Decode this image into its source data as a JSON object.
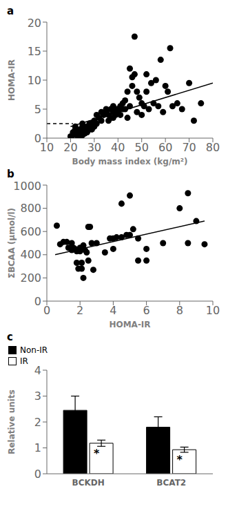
{
  "chart_data": [
    {
      "type": "scatter",
      "title": "a",
      "x_label": "Body mass index (kg/m²)",
      "y_label": "HOMA-IR",
      "xlim": [
        10,
        80
      ],
      "ylim": [
        0,
        20
      ],
      "xticks": [
        10,
        20,
        30,
        40,
        50,
        60,
        70,
        80
      ],
      "yticks": [
        0,
        5,
        10,
        15,
        20
      ],
      "series": [
        {
          "type": "scatter",
          "color": "#000000",
          "marker": "circle",
          "x": [
            20,
            21,
            21,
            22,
            22,
            22,
            22,
            23,
            23,
            23,
            23,
            24,
            24,
            24,
            24,
            24,
            25,
            25,
            25,
            25,
            25,
            25,
            26,
            26,
            26,
            27,
            27,
            27,
            28,
            28,
            28,
            29,
            29,
            30,
            30,
            31,
            31,
            32,
            33,
            33,
            34,
            35,
            35,
            36,
            36,
            37,
            37,
            38,
            38,
            38,
            39,
            39,
            40,
            40,
            41,
            41,
            42,
            42,
            43,
            43,
            44,
            44,
            45,
            45,
            46,
            46,
            47,
            47,
            48,
            48,
            49,
            50,
            50,
            51,
            52,
            52,
            53,
            54,
            55,
            56,
            57,
            58,
            59,
            60,
            61,
            62,
            63,
            65,
            67,
            70,
            72,
            75
          ],
          "values": [
            0.3,
            0.5,
            1.0,
            0.8,
            1.2,
            1.5,
            2.0,
            0.3,
            0.5,
            0.8,
            1.0,
            0.3,
            0.5,
            0.8,
            1.2,
            1.5,
            0.5,
            0.8,
            1.0,
            1.5,
            2.0,
            2.5,
            0.8,
            1.2,
            1.8,
            1.0,
            1.5,
            2.0,
            1.5,
            2.0,
            2.5,
            1.5,
            2.5,
            2.0,
            3.0,
            2.5,
            4.0,
            3.5,
            3.0,
            4.5,
            4.0,
            4.5,
            5.0,
            3.0,
            4.0,
            3.5,
            5.0,
            4.5,
            3.5,
            5.5,
            4.0,
            5.0,
            4.5,
            5.0,
            4.0,
            5.5,
            5.0,
            6.0,
            5.0,
            6.5,
            3.5,
            8.0,
            5.5,
            12.0,
            9.0,
            10.5,
            11.0,
            17.5,
            8.0,
            4.5,
            7.0,
            4.0,
            6.0,
            5.5,
            8.0,
            11.0,
            5.0,
            9.5,
            6.0,
            10.0,
            5.5,
            13.5,
            4.5,
            9.0,
            8.0,
            15.5,
            5.5,
            6.0,
            5.0,
            9.5,
            3.0,
            6.0
          ]
        },
        {
          "type": "line",
          "color": "#000000",
          "line_style": "solid",
          "x": [
            20,
            80
          ],
          "values": [
            2.0,
            9.5
          ]
        },
        {
          "type": "line",
          "color": "#000000",
          "line_style": "dashed",
          "x": [
            10,
            21
          ],
          "values": [
            2.5,
            2.5
          ]
        }
      ]
    },
    {
      "type": "scatter",
      "title": "b",
      "x_label": "HOMA-IR",
      "y_label": "ΣBCAA (μmol/l)",
      "xlim": [
        0,
        10
      ],
      "ylim": [
        0,
        1000
      ],
      "xticks": [
        0,
        2,
        4,
        6,
        8,
        10
      ],
      "yticks": [
        0,
        200,
        400,
        600,
        800,
        1000
      ],
      "series": [
        {
          "type": "scatter",
          "color": "#000000",
          "marker": "circle",
          "x": [
            0.6,
            0.8,
            1.0,
            1.2,
            1.3,
            1.5,
            1.5,
            1.6,
            1.7,
            1.8,
            1.8,
            1.9,
            2.0,
            2.0,
            2.0,
            2.1,
            2.1,
            2.2,
            2.2,
            2.3,
            2.4,
            2.5,
            2.5,
            2.6,
            2.7,
            2.8,
            3.0,
            3.5,
            3.8,
            4.0,
            4.0,
            4.2,
            4.5,
            4.5,
            4.8,
            5.0,
            5.0,
            5.2,
            5.5,
            5.5,
            6.0,
            6.0,
            7.0,
            8.0,
            8.5,
            8.5,
            9.0,
            9.5
          ],
          "values": [
            650,
            490,
            510,
            510,
            460,
            500,
            440,
            460,
            450,
            430,
            330,
            280,
            450,
            460,
            430,
            330,
            280,
            200,
            480,
            440,
            420,
            350,
            640,
            640,
            500,
            270,
            500,
            420,
            540,
            450,
            540,
            550,
            840,
            550,
            570,
            570,
            910,
            620,
            540,
            350,
            450,
            350,
            500,
            800,
            930,
            500,
            690,
            490
          ]
        },
        {
          "type": "line",
          "color": "#000000",
          "line_style": "solid",
          "x": [
            0.5,
            9.5
          ],
          "values": [
            400,
            690
          ]
        }
      ]
    },
    {
      "type": "bar",
      "title": "c",
      "y_label": "Relative units",
      "ylim": [
        0,
        4
      ],
      "yticks": [
        0,
        1,
        2,
        3,
        4
      ],
      "categories": [
        "BCKDH",
        "BCAT2"
      ],
      "legend": "upper right",
      "series": [
        {
          "name": "Non-IR",
          "color": "#000000",
          "values": [
            2.45,
            1.8
          ],
          "errors": [
            0.55,
            0.4
          ]
        },
        {
          "name": "IR",
          "color": "#ffffff",
          "values": [
            1.18,
            0.93
          ],
          "errors": [
            0.12,
            0.1
          ],
          "annotations": [
            "*",
            "*"
          ]
        }
      ]
    }
  ]
}
